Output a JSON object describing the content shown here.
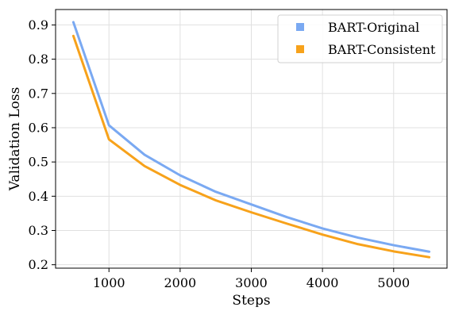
{
  "chart_data": {
    "type": "line",
    "title": "",
    "xlabel": "Steps",
    "ylabel": "Validation Loss",
    "x": [
      500,
      1000,
      1500,
      2000,
      2500,
      3000,
      3500,
      4000,
      4500,
      5000,
      5500
    ],
    "xlim": [
      250,
      5750
    ],
    "ylim": [
      0.19,
      0.945
    ],
    "xticks": [
      1000,
      2000,
      3000,
      4000,
      5000
    ],
    "yticks": [
      0.2,
      0.3,
      0.4,
      0.5,
      0.6,
      0.7,
      0.8,
      0.9
    ],
    "xtick_labels": [
      "1000",
      "2000",
      "3000",
      "4000",
      "5000"
    ],
    "ytick_labels": [
      "0.2",
      "0.3",
      "0.4",
      "0.5",
      "0.6",
      "0.7",
      "0.8",
      "0.9"
    ],
    "grid": true,
    "legend_position": "top-right",
    "series": [
      {
        "name": "BART-Original",
        "color": "#7aa9f2",
        "values": [
          0.908,
          0.607,
          0.521,
          0.461,
          0.413,
          0.376,
          0.339,
          0.306,
          0.279,
          0.257,
          0.238
        ]
      },
      {
        "name": "BART-Consistent",
        "color": "#f7a21b",
        "values": [
          0.868,
          0.566,
          0.488,
          0.433,
          0.388,
          0.353,
          0.32,
          0.288,
          0.26,
          0.239,
          0.222
        ]
      }
    ]
  }
}
